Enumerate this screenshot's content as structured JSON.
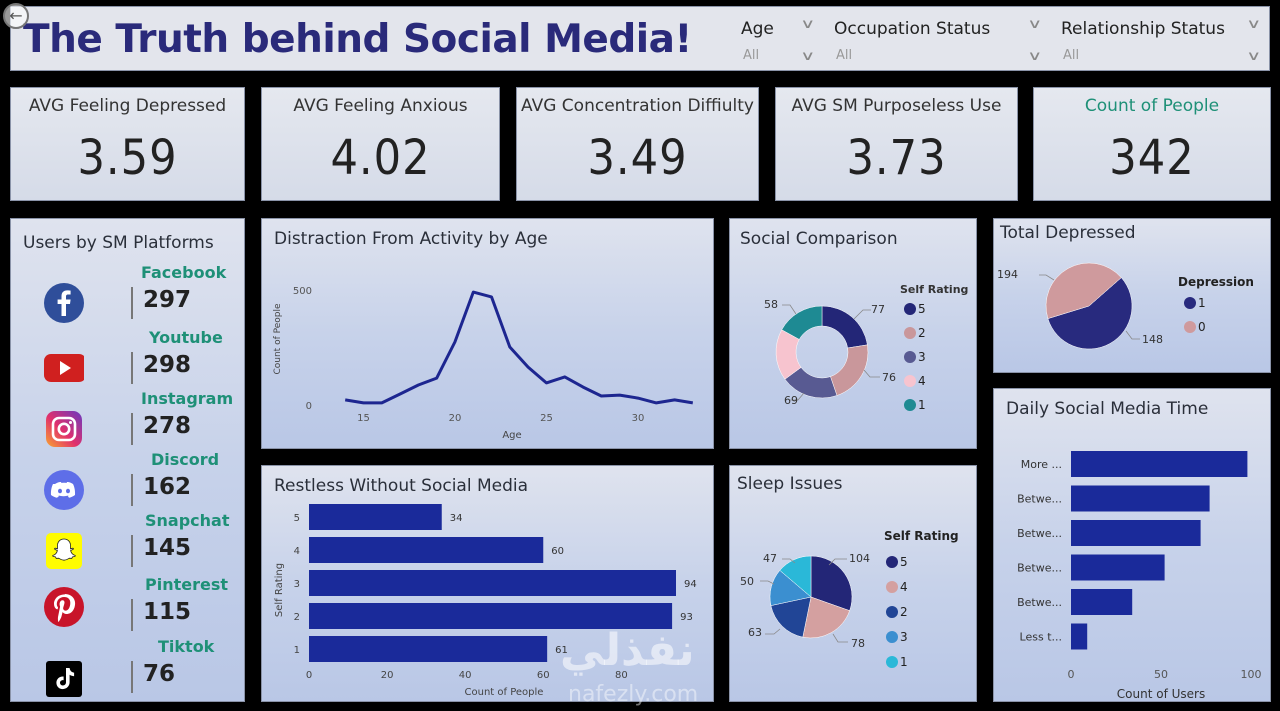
{
  "header": {
    "title": "The Truth behind Social Media!",
    "slicers": [
      {
        "label": "Age",
        "value": "All"
      },
      {
        "label": "Occupation Status",
        "value": "All"
      },
      {
        "label": "Relationship Status",
        "value": "All"
      }
    ]
  },
  "kpis": [
    {
      "label": "AVG Feeling Depressed",
      "value": "3.59"
    },
    {
      "label": "AVG Feeling Anxious",
      "value": "4.02"
    },
    {
      "label": "AVG Concentration Diffiulty",
      "value": "3.49"
    },
    {
      "label": "AVG SM Purposeless Use",
      "value": "3.73"
    },
    {
      "label": "Count of People",
      "value": "342"
    }
  ],
  "colors": {
    "accent_green": "#1e9077",
    "bar_blue": "#1a2a9a",
    "line_blue": "#1d2690",
    "title_navy": "#2a2a7a"
  },
  "platforms": {
    "title": "Users by SM Platforms",
    "items": [
      {
        "name": "Facebook",
        "value": "297",
        "icon": "facebook-icon"
      },
      {
        "name": "Youtube",
        "value": "298",
        "icon": "youtube-icon"
      },
      {
        "name": "Instagram",
        "value": "278",
        "icon": "instagram-icon"
      },
      {
        "name": "Discord",
        "value": "162",
        "icon": "discord-icon"
      },
      {
        "name": "Snapchat",
        "value": "145",
        "icon": "snapchat-icon"
      },
      {
        "name": "Pinterest",
        "value": "115",
        "icon": "pinterest-icon"
      },
      {
        "name": "Tiktok",
        "value": "76",
        "icon": "tiktok-icon"
      }
    ]
  },
  "watermark": {
    "arabic": "نفذلي",
    "latin": "nafezly.com"
  },
  "chart_data": [
    {
      "id": "distraction",
      "type": "line",
      "title": "Distraction From Activity by Age",
      "xlabel": "Age",
      "ylabel": "Count of People",
      "x": [
        14,
        15,
        16,
        17,
        18,
        19,
        20,
        21,
        22,
        23,
        24,
        25,
        26,
        27,
        28,
        29,
        30,
        31,
        32,
        33
      ],
      "values": [
        22,
        9,
        9,
        48,
        87,
        117,
        274,
        491,
        470,
        252,
        165,
        96,
        122,
        78,
        39,
        43,
        30,
        9,
        22,
        9
      ],
      "xticks": [
        "15",
        "20",
        "25",
        "30"
      ],
      "yticks": [
        "0",
        "500"
      ],
      "xlim": [
        13.5,
        33.5
      ],
      "ylim": [
        0,
        500
      ]
    },
    {
      "id": "restless",
      "type": "bar",
      "orientation": "horizontal",
      "title": "Restless Without Social Media",
      "xlabel": "Count of People",
      "ylabel": "Self Rating",
      "categories": [
        "5",
        "4",
        "3",
        "2",
        "1"
      ],
      "values": [
        34,
        60,
        94,
        93,
        61
      ],
      "xticks": [
        "0",
        "20",
        "40",
        "60",
        "80"
      ],
      "xlim": [
        0,
        94
      ]
    },
    {
      "id": "social_comparison",
      "type": "pie",
      "variant": "donut",
      "title": "Social Comparison",
      "legend_title": "Self Rating",
      "legend_position": "right",
      "slices": [
        {
          "label": "5",
          "value": 77,
          "color": "#232677"
        },
        {
          "label": "2",
          "value": 76,
          "color": "#c9979b"
        },
        {
          "label": "3",
          "value": 69,
          "color": "#585a92"
        },
        {
          "label": "4",
          "value": 62,
          "color": "#f7c4cf"
        },
        {
          "label": "1",
          "value": 58,
          "color": "#1e8a93"
        }
      ],
      "data_labels": [
        "77",
        "76",
        "69",
        "58"
      ]
    },
    {
      "id": "sleep_issues",
      "type": "pie",
      "title": "Sleep Issues",
      "legend_title": "Self Rating",
      "legend_position": "right",
      "slices": [
        {
          "label": "5",
          "value": 104,
          "color": "#232677"
        },
        {
          "label": "4",
          "value": 78,
          "color": "#d4a0a0"
        },
        {
          "label": "2",
          "value": 63,
          "color": "#214596"
        },
        {
          "label": "3",
          "value": 50,
          "color": "#3b8fd0"
        },
        {
          "label": "1",
          "value": 47,
          "color": "#2ab8d8"
        }
      ]
    },
    {
      "id": "total_depressed",
      "type": "pie",
      "title": "Total Depressed",
      "legend_title": "Depression",
      "legend_position": "right",
      "slices": [
        {
          "label": "1",
          "value": 194,
          "color": "#282a7e"
        },
        {
          "label": "0",
          "value": 148,
          "color": "#cf9a9d"
        }
      ]
    },
    {
      "id": "daily_time",
      "type": "bar",
      "orientation": "horizontal",
      "title": "Daily Social Media Time",
      "xlabel": "Count of Users",
      "categories": [
        "More ...",
        "Betwe...",
        "Betwe...",
        "Betwe...",
        "Betwe...",
        "Less t..."
      ],
      "values": [
        98,
        77,
        72,
        52,
        34,
        9
      ],
      "xticks": [
        "0",
        "50",
        "100"
      ],
      "xlim": [
        0,
        100
      ]
    }
  ]
}
